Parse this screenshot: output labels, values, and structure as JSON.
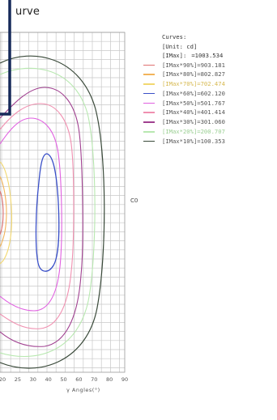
{
  "chart_data": {
    "type": "contour",
    "title": "urve",
    "c_label": "C0",
    "xlabel": "γ Angles(°)",
    "x_ticks": [
      "20",
      "25",
      "30",
      "40",
      "50",
      "60",
      "70",
      "80",
      "90"
    ],
    "legend": {
      "heading": "Curves:",
      "unit_label": "[Unit: cd]",
      "max_label": "[IMax]:",
      "max_value": "=1003.534",
      "entries": [
        {
          "label": "[IMax*90%]=903.181",
          "color": "#e07070"
        },
        {
          "label": "[IMax*80%]=802.827",
          "color": "#f2b45a"
        },
        {
          "label": "[IMax*70%]=702.474",
          "color": "#f2d870"
        },
        {
          "label": "[IMax*60%]=602.120",
          "color": "#3a50c8"
        },
        {
          "label": "[IMax*50%]=501.767",
          "color": "#e060e0"
        },
        {
          "label": "[IMax*40%]=401.414",
          "color": "#f090b0"
        },
        {
          "label": "[IMax*30%]=301.060",
          "color": "#a04090"
        },
        {
          "label": "[IMax*20%]=200.707",
          "color": "#b8e8b0"
        },
        {
          "label": "[IMax*10%]=100.353",
          "color": "#3a4a3a"
        }
      ]
    }
  }
}
